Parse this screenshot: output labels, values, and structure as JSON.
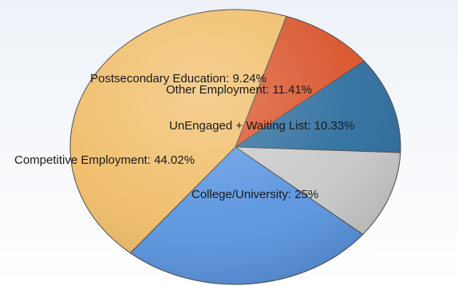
{
  "chart_data": {
    "type": "pie",
    "title": "",
    "slices": [
      {
        "label": "Postsecondary Education",
        "value": 9.24,
        "display": "Postsecondary Education: 9.24%",
        "color": "#d9532a"
      },
      {
        "label": "Other Employment",
        "value": 11.41,
        "display": "Other Employment: 11.41%",
        "color": "#2e6e9e"
      },
      {
        "label": "UnEngaged + Waiting List",
        "value": 10.33,
        "display": "UnEngaged + Waiting List: 10.33%",
        "color": "#c9c9c9"
      },
      {
        "label": "College/University",
        "value": 25,
        "display": "College/University: 25%",
        "color": "#5a95e0"
      },
      {
        "label": "Competitive Employment",
        "value": 44.02,
        "display": "Competitive Employment: 44.02%",
        "color": "#f0bd68"
      }
    ],
    "legend": "none",
    "labels": "inline"
  }
}
